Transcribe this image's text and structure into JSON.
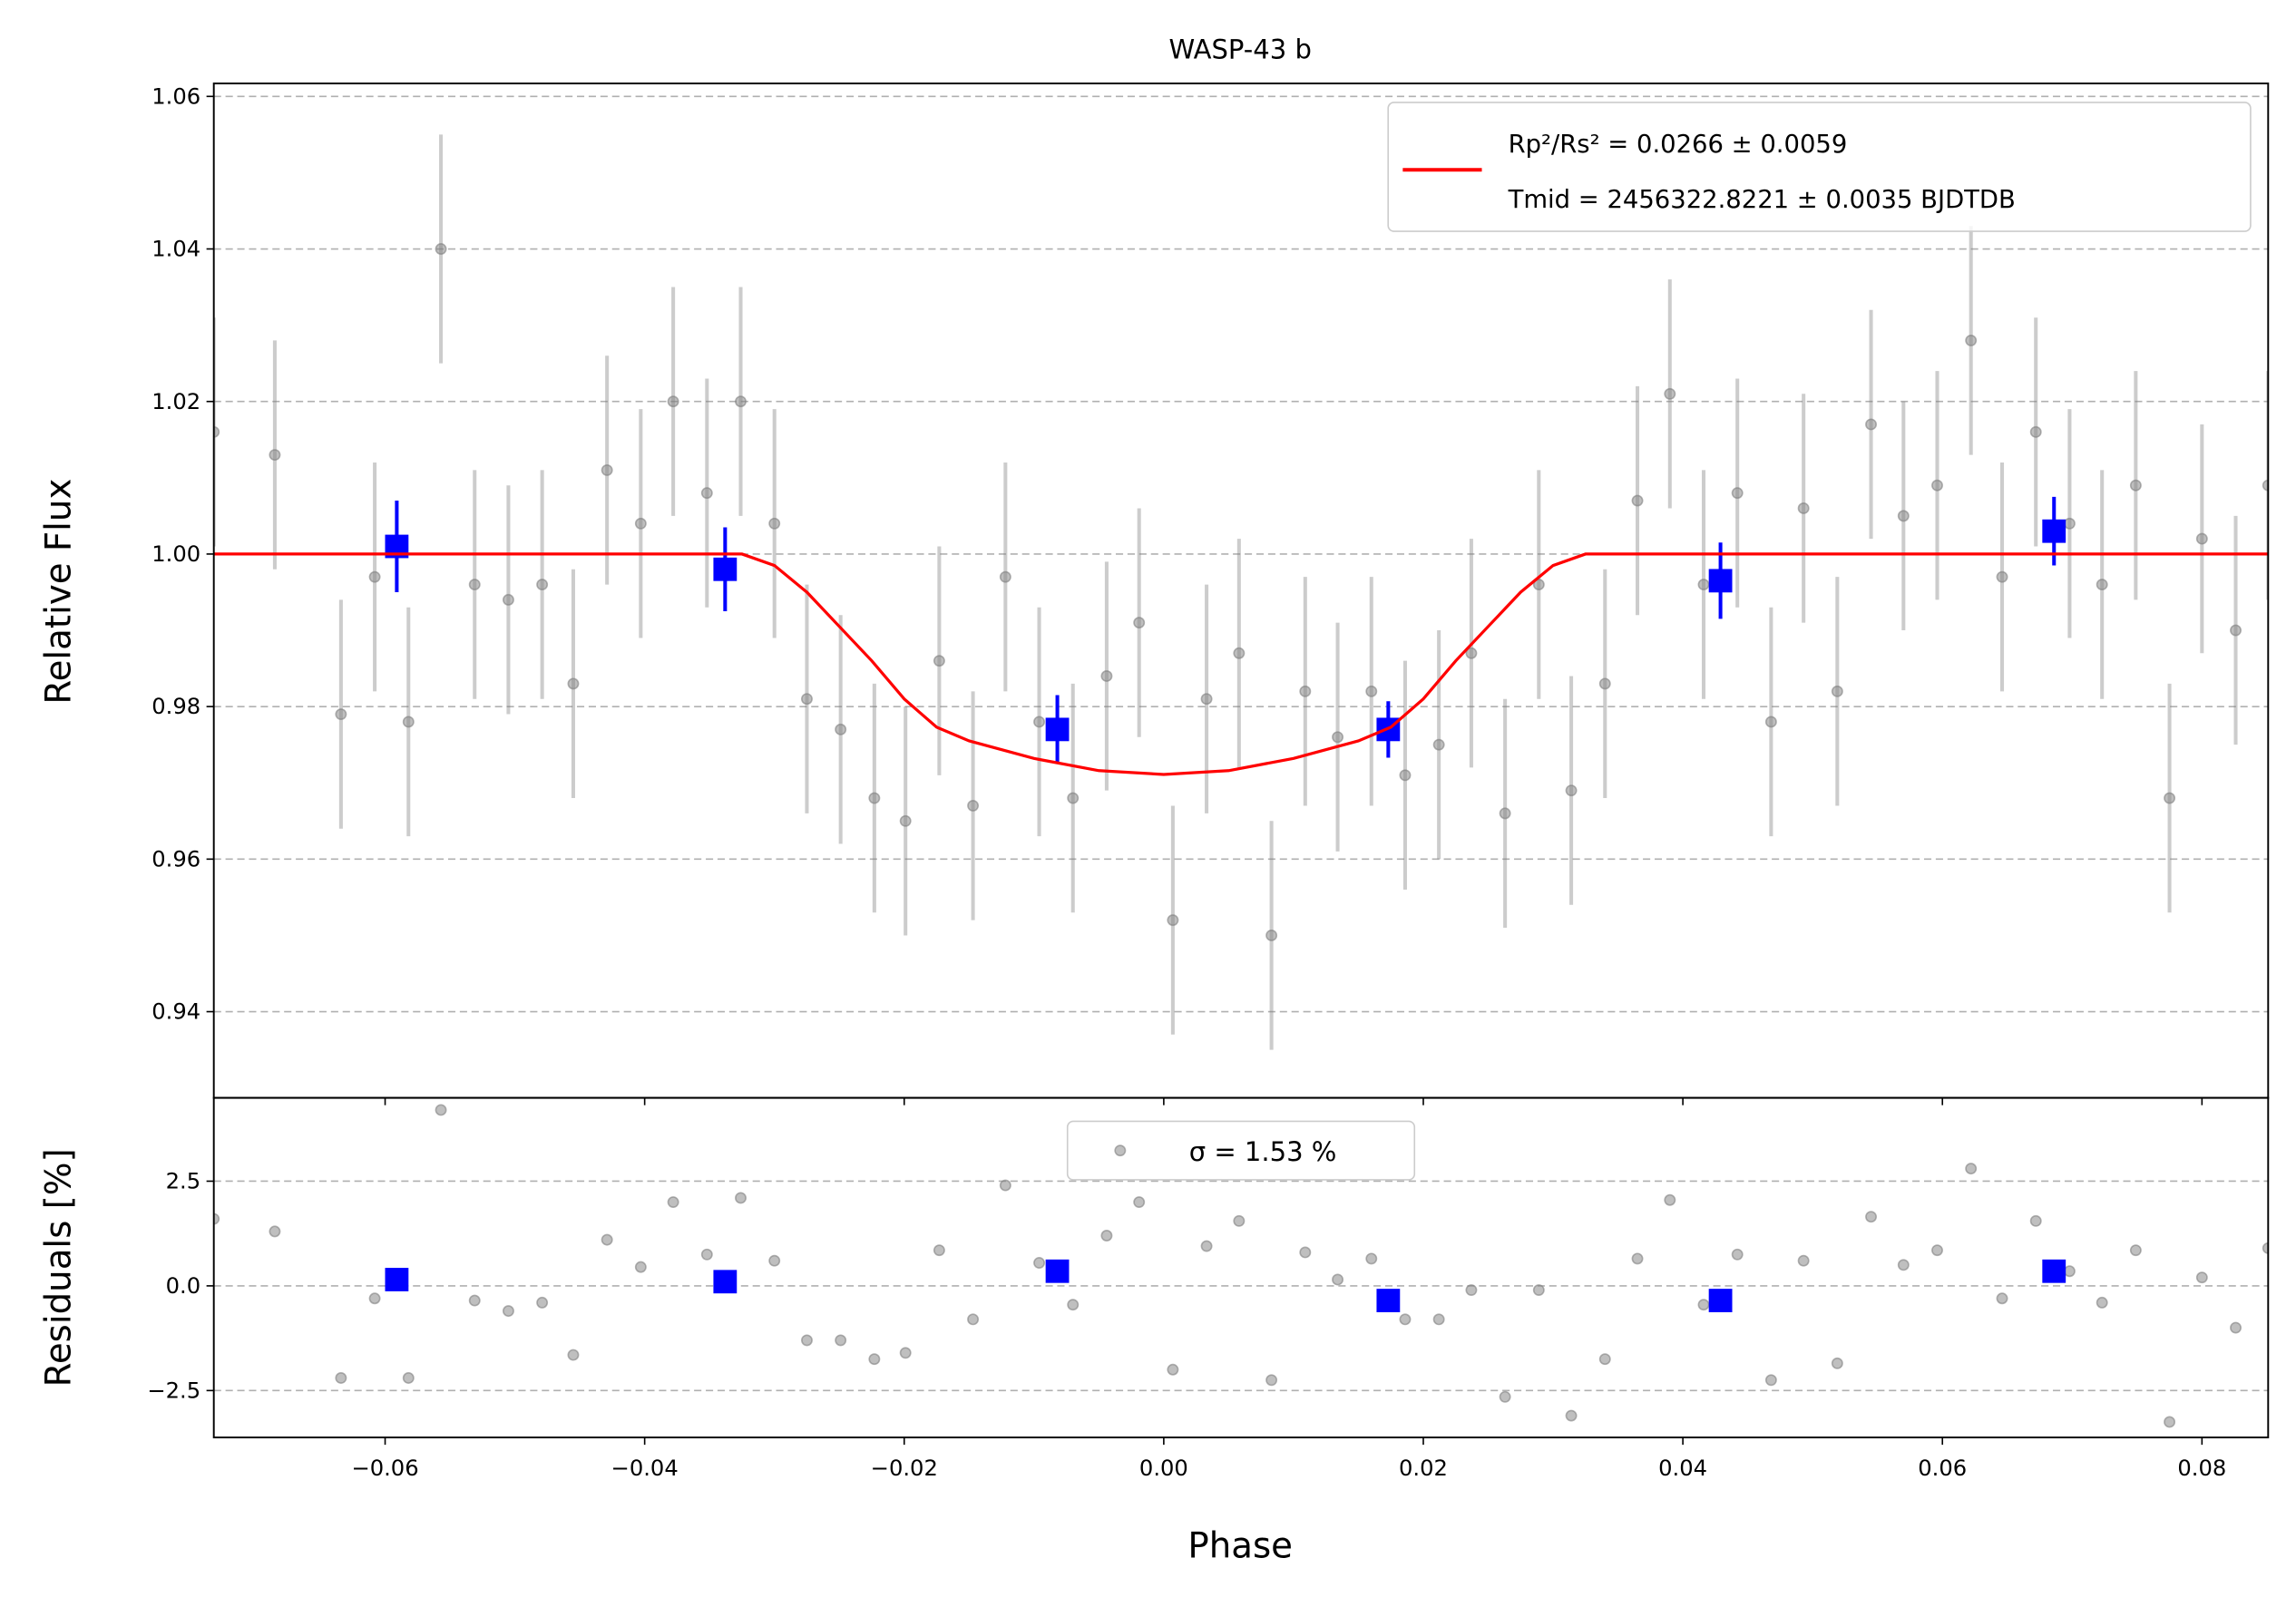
{
  "chart_data": [
    {
      "type": "errorbar",
      "title": "WASP-43 b",
      "ylabel": "Relative Flux",
      "xlim": [
        -0.0732,
        0.0851
      ],
      "ylim": [
        0.9287,
        1.0617
      ],
      "yticks": [
        0.94,
        0.96,
        0.98,
        {
          "value": 1.0,
          "label": "1.00"
        },
        1.02,
        1.04,
        1.06
      ],
      "grid": true,
      "legend": "upper right",
      "series": [
        {
          "color": "#808080",
          "x": [
            -0.0732,
            -0.0685,
            -0.0634,
            -0.0608,
            -0.0582,
            -0.0557,
            -0.0531,
            -0.0505,
            -0.0479,
            -0.0455,
            -0.0429,
            -0.0403,
            -0.0378,
            -0.0352,
            -0.0326,
            -0.03,
            -0.0275,
            -0.0249,
            -0.0223,
            -0.0199,
            -0.0173,
            -0.0147,
            -0.0122,
            -0.0096,
            -0.007,
            -0.0044,
            -0.0019,
            0.0007,
            0.0033,
            0.0058,
            0.0083,
            0.0109,
            0.0134,
            0.016,
            0.0186,
            0.0212,
            0.0237,
            0.0263,
            0.0289,
            0.0314,
            0.034,
            0.0365,
            0.039,
            0.0416,
            0.0442,
            0.0468,
            0.0493,
            0.0519,
            0.0545,
            0.057,
            0.0596,
            0.0622,
            0.0646,
            0.0672,
            0.0698,
            0.0723,
            0.0749,
            0.0775,
            0.08,
            0.0826,
            0.0851
          ],
          "values": [
            1.016,
            1.013,
            0.979,
            0.997,
            0.978,
            1.04,
            0.996,
            0.994,
            0.996,
            0.983,
            1.011,
            1.004,
            1.02,
            1.008,
            1.02,
            1.004,
            0.981,
            0.977,
            0.968,
            0.965,
            0.986,
            0.967,
            0.997,
            0.978,
            0.968,
            0.984,
            0.991,
            0.952,
            0.981,
            0.987,
            0.95,
            0.982,
            0.976,
            0.982,
            0.971,
            0.975,
            0.987,
            0.966,
            0.996,
            0.969,
            0.983,
            1.007,
            1.021,
            0.996,
            1.008,
            0.978,
            1.006,
            0.982,
            1.017,
            1.005,
            1.009,
            1.028,
            0.997,
            1.016,
            1.004,
            0.996,
            1.009,
            0.968,
            1.002,
            0.99,
            1.009
          ],
          "errors": [
            0.015,
            0.015,
            0.015,
            0.015,
            0.015,
            0.015,
            0.015,
            0.015,
            0.015,
            0.015,
            0.015,
            0.015,
            0.015,
            0.015,
            0.015,
            0.015,
            0.015,
            0.015,
            0.015,
            0.015,
            0.015,
            0.015,
            0.015,
            0.015,
            0.015,
            0.015,
            0.015,
            0.015,
            0.015,
            0.015,
            0.015,
            0.015,
            0.015,
            0.015,
            0.015,
            0.015,
            0.015,
            0.015,
            0.015,
            0.015,
            0.015,
            0.015,
            0.015,
            0.015,
            0.015,
            0.015,
            0.015,
            0.015,
            0.015,
            0.015,
            0.015,
            0.015,
            0.015,
            0.015,
            0.015,
            0.015,
            0.015,
            0.015,
            0.015,
            0.015,
            0.015
          ]
        },
        {
          "color": "#0000ff",
          "marker": "square",
          "x": [
            -0.0591,
            -0.0338,
            -0.0082,
            0.0173,
            0.0429,
            0.0686
          ],
          "values": [
            1.001,
            0.998,
            0.977,
            0.977,
            0.9965,
            1.003
          ],
          "errors": [
            0.006,
            0.0055,
            0.0045,
            0.0037,
            0.005,
            0.0045
          ]
        },
        {
          "color": "#ff0000",
          "kind": "line",
          "name": "Rp²/Rs² = 0.0266 ± 0.0059",
          "x": [
            -0.0732,
            -0.0325,
            -0.03,
            -0.0275,
            -0.025,
            -0.0225,
            -0.02,
            -0.0175,
            -0.015,
            -0.01,
            -0.005,
            0,
            0.005,
            0.01,
            0.015,
            0.0175,
            0.02,
            0.0225,
            0.025,
            0.0275,
            0.03,
            0.0325,
            0.0851
          ],
          "values": [
            1.0,
            1.0,
            0.9985,
            0.995,
            0.9905,
            0.986,
            0.981,
            0.9773,
            0.9755,
            0.9732,
            0.9716,
            0.9711,
            0.9716,
            0.9732,
            0.9755,
            0.9773,
            0.981,
            0.986,
            0.9905,
            0.995,
            0.9985,
            1.0,
            1.0
          ]
        }
      ],
      "annotations": [
        "Tmid = 2456322.8221 ± 0.0035 BJDTDB"
      ]
    },
    {
      "type": "scatter",
      "xlabel": "Phase",
      "ylabel": "Residuals [%]",
      "xlim": [
        -0.0732,
        0.0851
      ],
      "ylim": [
        -3.62,
        4.49
      ],
      "xticks": [
        {
          "value": -0.06,
          "label": "−0.06"
        },
        {
          "value": -0.04,
          "label": "−0.04"
        },
        {
          "value": -0.02,
          "label": "−0.02"
        },
        {
          "value": 0,
          "label": "0.00"
        },
        0.02,
        0.04,
        0.06,
        0.08
      ],
      "yticks": [
        {
          "value": -2.5,
          "label": "−2.5"
        },
        {
          "value": 0,
          "label": "0.0"
        },
        2.5
      ],
      "grid": true,
      "legend": "upper center",
      "series": [
        {
          "color": "#808080",
          "name": "σ = 1.53 %",
          "x": [
            -0.0732,
            -0.0685,
            -0.0634,
            -0.0608,
            -0.0582,
            -0.0557,
            -0.0531,
            -0.0505,
            -0.0479,
            -0.0455,
            -0.0429,
            -0.0403,
            -0.0378,
            -0.0352,
            -0.0326,
            -0.03,
            -0.0275,
            -0.0249,
            -0.0223,
            -0.0199,
            -0.0173,
            -0.0147,
            -0.0122,
            -0.0096,
            -0.007,
            -0.0044,
            -0.0019,
            0.0007,
            0.0033,
            0.0058,
            0.0083,
            0.0109,
            0.0134,
            0.016,
            0.0186,
            0.0212,
            0.0237,
            0.0263,
            0.0289,
            0.0314,
            0.034,
            0.0365,
            0.039,
            0.0416,
            0.0442,
            0.0468,
            0.0493,
            0.0519,
            0.0545,
            0.057,
            0.0596,
            0.0622,
            0.0646,
            0.0672,
            0.0698,
            0.0723,
            0.0749,
            0.0775,
            0.08,
            0.0826,
            0.0851
          ],
          "values": [
            1.6,
            1.3,
            -2.2,
            -0.3,
            -2.2,
            4.2,
            -0.35,
            -0.6,
            -0.4,
            -1.65,
            1.1,
            0.45,
            2.0,
            0.75,
            2.1,
            0.6,
            -1.3,
            -1.3,
            -1.75,
            -1.6,
            0.85,
            -0.8,
            2.4,
            0.55,
            -0.45,
            1.2,
            2.0,
            -2.0,
            0.95,
            1.55,
            -2.25,
            0.8,
            0.15,
            0.65,
            -0.8,
            -0.8,
            -0.1,
            -2.65,
            -0.1,
            -3.1,
            -1.75,
            0.65,
            2.05,
            -0.45,
            0.75,
            -2.25,
            0.6,
            -1.85,
            1.65,
            0.5,
            0.85,
            2.8,
            -0.3,
            1.55,
            0.35,
            -0.4,
            0.85,
            -3.25,
            0.2,
            -1.0,
            0.9
          ]
        },
        {
          "color": "#0000ff",
          "marker": "square",
          "x": [
            -0.0591,
            -0.0338,
            -0.0082,
            0.0173,
            0.0429,
            0.0686
          ],
          "values": [
            0.15,
            0.1,
            0.35,
            -0.35,
            -0.35,
            0.35
          ]
        }
      ]
    }
  ]
}
